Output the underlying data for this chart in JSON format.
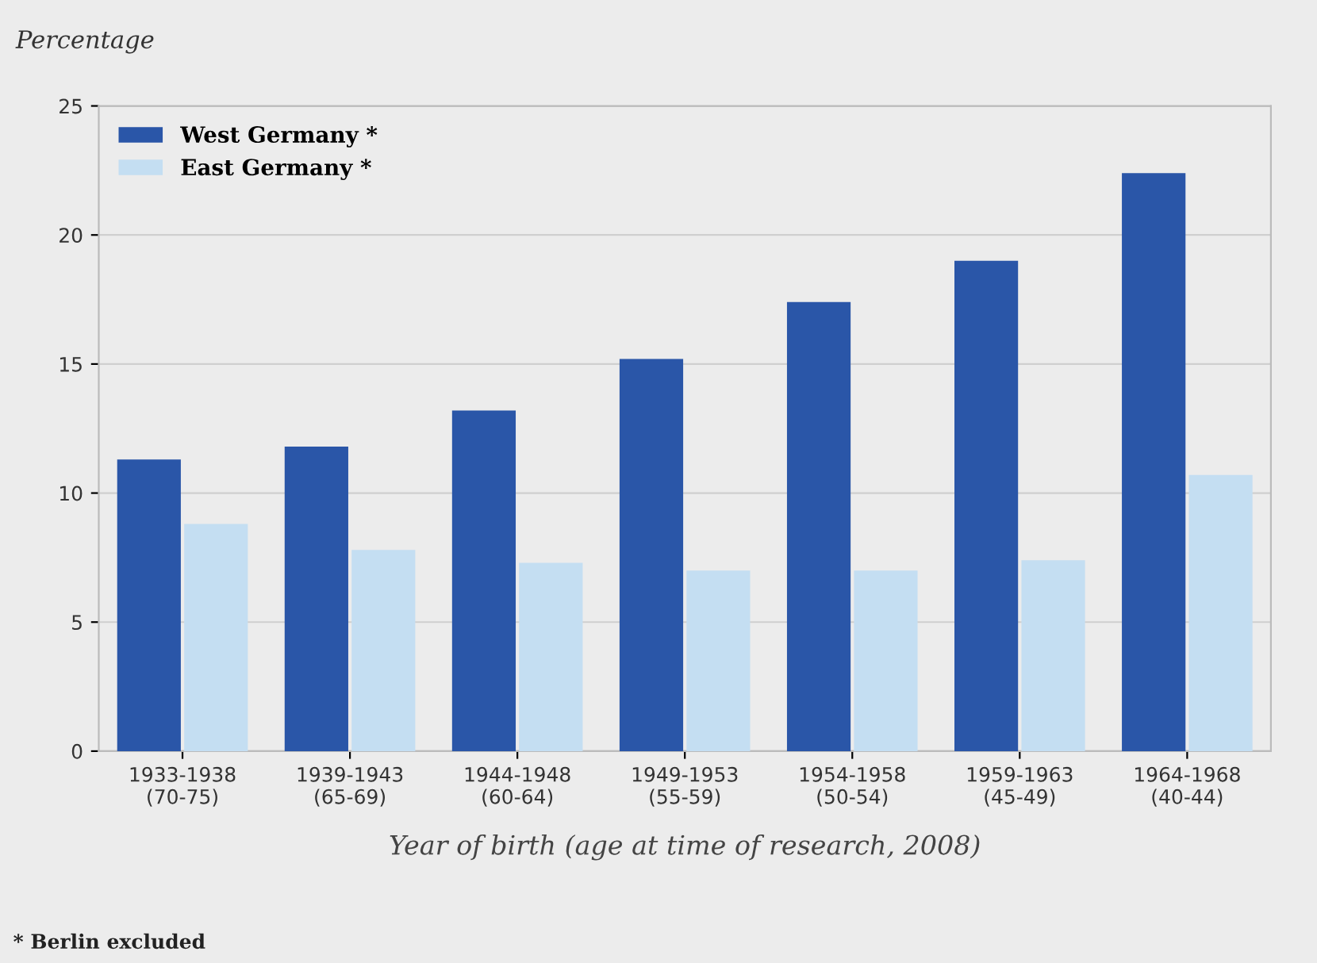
{
  "chart_data": {
    "type": "bar",
    "ylabel": "Percentage",
    "xlabel": "Year of birth (age at time of research, 2008)",
    "categories": [
      "1933-1938\n(70-75)",
      "1939-1943\n(65-69)",
      "1944-1948\n(60-64)",
      "1949-1953\n(55-59)",
      "1954-1958\n(50-54)",
      "1959-1963\n(45-49)",
      "1964-1968\n(40-44)"
    ],
    "series": [
      {
        "name": "West Germany *",
        "color": "#2a56a8",
        "values": [
          11.3,
          11.8,
          13.2,
          15.2,
          17.4,
          19.0,
          22.4
        ]
      },
      {
        "name": "East Germany *",
        "color": "#c4def2",
        "values": [
          8.8,
          7.8,
          7.3,
          7.0,
          7.0,
          7.4,
          10.7
        ]
      }
    ],
    "ylim": [
      0,
      25
    ],
    "yticks": [
      0,
      5,
      10,
      15,
      20,
      25
    ],
    "grid": "y",
    "legend": "top left",
    "annotations": [
      "* Berlin excluded"
    ]
  }
}
